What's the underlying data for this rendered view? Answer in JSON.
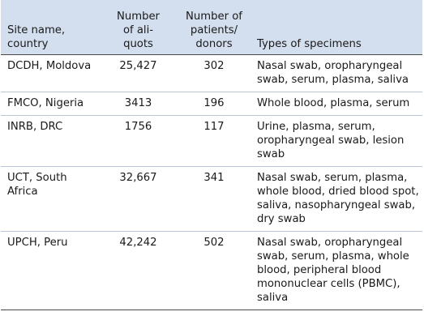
{
  "headers": {
    "site": "Site name, country",
    "aliquots": "Number of ali-quots",
    "aliquots_line1": "Number",
    "aliquots_line2": "of ali-",
    "aliquots_line3": "quots",
    "patients_line1": "Number of",
    "patients_line2": "patients/",
    "patients_line3": "donors",
    "site_line1": "Site name,",
    "site_line2": "country",
    "specimens": "Types of specimens"
  },
  "rows": [
    {
      "site": "DCDH, Moldova",
      "aliquots": "25,427",
      "patients": "302",
      "specimens": "Nasal swab, oropharyngeal swab, serum, plasma, saliva"
    },
    {
      "site": "FMCO, Nigeria",
      "aliquots": "3413",
      "patients": "196",
      "specimens": "Whole blood, plasma, serum"
    },
    {
      "site": "INRB, DRC",
      "aliquots": "1756",
      "patients": "117",
      "specimens": "Urine, plasma, serum, oropharyngeal swab, lesion swab"
    },
    {
      "site": "UCT, South Africa",
      "aliquots": "32,667",
      "patients": "341",
      "specimens": "Nasal swab, serum, plasma, whole blood, dried blood spot, saliva, nasopharyngeal swab, dry swab"
    },
    {
      "site": "UPCH, Peru",
      "aliquots": "42,242",
      "patients": "502",
      "specimens": "Nasal swab, oropharyngeal swab, serum, plasma, whole blood, peripheral blood mononuclear cells (PBMC), saliva"
    }
  ],
  "colors": {
    "header_background": "#d3dfef",
    "row_divider": "#b9c6d8",
    "rule": "#4a4a4a",
    "text": "#1a1a1a"
  }
}
